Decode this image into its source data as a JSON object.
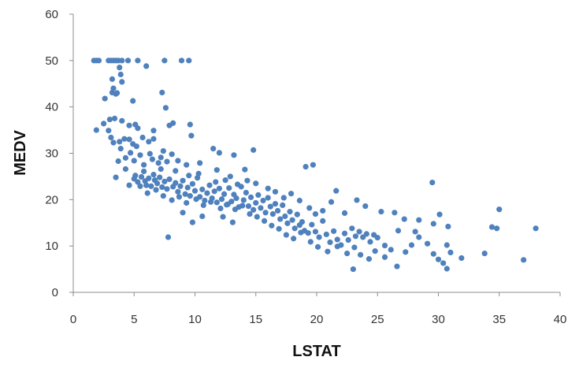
{
  "chart_data": {
    "type": "scatter",
    "title": "",
    "xlabel": "LSTAT",
    "ylabel": "MEDV",
    "xlim": [
      0,
      40
    ],
    "ylim": [
      0,
      60
    ],
    "x_ticks": [
      "0",
      "5",
      "10",
      "15",
      "20",
      "25",
      "30",
      "35",
      "40"
    ],
    "y_ticks": [
      "0",
      "10",
      "20",
      "30",
      "40",
      "50",
      "60"
    ],
    "grid": false,
    "legend": "none",
    "marker_color": "#4F81BD",
    "series": [
      {
        "points": [
          [
            1.7,
            50
          ],
          [
            1.9,
            50
          ],
          [
            2.1,
            50
          ],
          [
            2.9,
            50
          ],
          [
            3.1,
            50
          ],
          [
            3.3,
            50
          ],
          [
            3.5,
            50
          ],
          [
            3.7,
            50
          ],
          [
            4.0,
            50
          ],
          [
            4.5,
            50
          ],
          [
            5.3,
            50
          ],
          [
            7.5,
            50
          ],
          [
            8.9,
            50
          ],
          [
            9.5,
            50
          ],
          [
            6.0,
            48.8
          ],
          [
            3.8,
            48.5
          ],
          [
            3.9,
            47
          ],
          [
            3.2,
            46
          ],
          [
            4.0,
            45.4
          ],
          [
            3.3,
            44
          ],
          [
            3.2,
            43.1
          ],
          [
            3.6,
            43
          ],
          [
            3.5,
            42.8
          ],
          [
            7.3,
            43.1
          ],
          [
            2.6,
            41.8
          ],
          [
            4.9,
            41.3
          ],
          [
            3.4,
            37.5
          ],
          [
            3.0,
            37.3
          ],
          [
            4.0,
            37
          ],
          [
            7.6,
            39.8
          ],
          [
            5.1,
            36.2
          ],
          [
            4.6,
            36
          ],
          [
            5.3,
            35.4
          ],
          [
            9.6,
            36.2
          ],
          [
            7.9,
            36
          ],
          [
            8.2,
            36.5
          ],
          [
            6.6,
            34.9
          ],
          [
            1.9,
            35
          ],
          [
            2.9,
            34.9
          ],
          [
            3.8,
            32.5
          ],
          [
            3.3,
            32.3
          ],
          [
            4.2,
            33.1
          ],
          [
            4.6,
            33
          ],
          [
            4.9,
            32
          ],
          [
            5.7,
            33.4
          ],
          [
            6.2,
            32.5
          ],
          [
            6.6,
            33.1
          ],
          [
            5.2,
            31.5
          ],
          [
            4.7,
            30.1
          ],
          [
            3.9,
            31
          ],
          [
            5.5,
            29.6
          ],
          [
            6.3,
            29.9
          ],
          [
            7.2,
            29.1
          ],
          [
            7.4,
            30.5
          ],
          [
            8.1,
            29.8
          ],
          [
            9.7,
            33.8
          ],
          [
            11.5,
            31
          ],
          [
            12.0,
            30.1
          ],
          [
            13.2,
            29.6
          ],
          [
            14.8,
            30.7
          ],
          [
            5.0,
            28.4
          ],
          [
            5.8,
            27.5
          ],
          [
            6.5,
            28.7
          ],
          [
            7.0,
            27.9
          ],
          [
            7.7,
            28.2
          ],
          [
            8.6,
            28.4
          ],
          [
            9.3,
            27.5
          ],
          [
            10.4,
            27.9
          ],
          [
            11.8,
            26.4
          ],
          [
            12.9,
            25
          ],
          [
            14.1,
            26.5
          ],
          [
            3.5,
            24.8
          ],
          [
            4.3,
            26.6
          ],
          [
            5.1,
            25.2
          ],
          [
            5.3,
            23.8
          ],
          [
            5.6,
            24.9
          ],
          [
            5.9,
            24
          ],
          [
            6.0,
            23.1
          ],
          [
            6.2,
            24.6
          ],
          [
            6.4,
            22.9
          ],
          [
            6.7,
            24.2
          ],
          [
            6.9,
            23.5
          ],
          [
            7.1,
            24.8
          ],
          [
            7.3,
            22.7
          ],
          [
            7.5,
            23.9
          ],
          [
            7.7,
            22.3
          ],
          [
            7.9,
            24.4
          ],
          [
            8.2,
            22.8
          ],
          [
            8.4,
            23.6
          ],
          [
            8.6,
            21.7
          ],
          [
            8.8,
            22.9
          ],
          [
            9.0,
            24.1
          ],
          [
            9.2,
            21.2
          ],
          [
            9.4,
            22.6
          ],
          [
            9.6,
            20.8
          ],
          [
            9.8,
            23.4
          ],
          [
            10.0,
            21.9
          ],
          [
            10.2,
            24.7
          ],
          [
            10.4,
            20.6
          ],
          [
            10.6,
            22.2
          ],
          [
            10.8,
            19.8
          ],
          [
            11.0,
            21.4
          ],
          [
            11.2,
            23.1
          ],
          [
            11.4,
            20.3
          ],
          [
            11.6,
            21.8
          ],
          [
            11.8,
            19.4
          ],
          [
            12.0,
            22.4
          ],
          [
            12.2,
            20.1
          ],
          [
            12.4,
            21.2
          ],
          [
            12.6,
            18.9
          ],
          [
            12.8,
            22.5
          ],
          [
            13.0,
            19.6
          ],
          [
            13.2,
            21.1
          ],
          [
            13.4,
            20.3
          ],
          [
            13.6,
            18.4
          ],
          [
            13.8,
            22.8
          ],
          [
            14.0,
            19.9
          ],
          [
            14.2,
            21.5
          ],
          [
            14.4,
            18.6
          ],
          [
            14.6,
            20.5
          ],
          [
            14.8,
            17.8
          ],
          [
            15.0,
            19.3
          ],
          [
            15.2,
            21
          ],
          [
            15.4,
            18.2
          ],
          [
            15.6,
            19.8
          ],
          [
            15.8,
            17.2
          ],
          [
            16.0,
            20.4
          ],
          [
            16.2,
            18.5
          ],
          [
            16.4,
            16.9
          ],
          [
            16.6,
            19.1
          ],
          [
            16.8,
            17.6
          ],
          [
            17.0,
            15.8
          ],
          [
            17.2,
            18.8
          ],
          [
            17.4,
            16.4
          ],
          [
            17.6,
            14.9
          ],
          [
            17.8,
            17.4
          ],
          [
            18.0,
            15.6
          ],
          [
            18.2,
            13.8
          ],
          [
            18.4,
            16.8
          ],
          [
            18.6,
            14.5
          ],
          [
            18.8,
            15.2
          ],
          [
            19.0,
            13.3
          ],
          [
            19.3,
            12.8
          ],
          [
            19.6,
            14.6
          ],
          [
            19.9,
            13.1
          ],
          [
            20.2,
            11.9
          ],
          [
            20.5,
            15.4
          ],
          [
            20.8,
            12.5
          ],
          [
            21.1,
            10.8
          ],
          [
            21.4,
            13.2
          ],
          [
            21.7,
            11.4
          ],
          [
            22.0,
            10.2
          ],
          [
            22.3,
            12.7
          ],
          [
            22.6,
            11.3
          ],
          [
            22.9,
            13.8
          ],
          [
            23.2,
            12.1
          ],
          [
            23.5,
            13.1
          ],
          [
            23.8,
            11.9
          ],
          [
            24.1,
            12.6
          ],
          [
            24.4,
            10.9
          ],
          [
            24.7,
            12.4
          ],
          [
            25.0,
            11.8
          ],
          [
            15.0,
            23.5
          ],
          [
            16.0,
            22.4
          ],
          [
            16.6,
            21.7
          ],
          [
            17.3,
            20.4
          ],
          [
            17.9,
            21.3
          ],
          [
            18.6,
            19.8
          ],
          [
            19.4,
            18.2
          ],
          [
            19.9,
            16.9
          ],
          [
            20.5,
            17.6
          ],
          [
            21.2,
            19.5
          ],
          [
            21.6,
            21.9
          ],
          [
            22.3,
            17.1
          ],
          [
            23.3,
            19.9
          ],
          [
            24.0,
            18.6
          ],
          [
            25.3,
            17.4
          ],
          [
            26.4,
            17.2
          ],
          [
            27.2,
            15.8
          ],
          [
            28.4,
            15.6
          ],
          [
            29.6,
            14.8
          ],
          [
            30.1,
            16.8
          ],
          [
            30.8,
            14.2
          ],
          [
            5.5,
            22.9
          ],
          [
            6.1,
            21.4
          ],
          [
            6.8,
            22.1
          ],
          [
            7.4,
            20.8
          ],
          [
            8.1,
            19.9
          ],
          [
            8.7,
            20.6
          ],
          [
            9.3,
            19.3
          ],
          [
            10.1,
            20.1
          ],
          [
            10.7,
            18.8
          ],
          [
            11.3,
            19.5
          ],
          [
            12.1,
            18.1
          ],
          [
            12.7,
            19
          ],
          [
            13.3,
            17.9
          ],
          [
            13.9,
            18.7
          ],
          [
            14.5,
            16.9
          ],
          [
            15.1,
            16.3
          ],
          [
            15.7,
            15.4
          ],
          [
            16.3,
            14.4
          ],
          [
            16.9,
            13.7
          ],
          [
            17.5,
            12.4
          ],
          [
            18.1,
            11.6
          ],
          [
            18.7,
            12.9
          ],
          [
            19.5,
            10.9
          ],
          [
            20.1,
            9.8
          ],
          [
            20.9,
            8.8
          ],
          [
            21.7,
            9.9
          ],
          [
            22.5,
            8.4
          ],
          [
            23.1,
            9.7
          ],
          [
            23.6,
            8.1
          ],
          [
            24.3,
            7.2
          ],
          [
            24.8,
            8.9
          ],
          [
            25.6,
            7.6
          ],
          [
            26.1,
            9.2
          ],
          [
            26.6,
            5.6
          ],
          [
            27.3,
            8.7
          ],
          [
            27.8,
            10.2
          ],
          [
            28.4,
            11.9
          ],
          [
            29.1,
            10.5
          ],
          [
            29.6,
            8.3
          ],
          [
            30.0,
            7.1
          ],
          [
            30.4,
            6.3
          ],
          [
            30.7,
            5.1
          ],
          [
            31.0,
            8.6
          ],
          [
            31.9,
            7.4
          ],
          [
            33.8,
            8.4
          ],
          [
            34.4,
            14.1
          ],
          [
            34.8,
            13.8
          ],
          [
            35.0,
            17.9
          ],
          [
            37.0,
            7
          ],
          [
            38.0,
            13.8
          ],
          [
            29.5,
            23.7
          ],
          [
            19.1,
            27.1
          ],
          [
            19.7,
            27.5
          ],
          [
            23.0,
            5
          ],
          [
            30.7,
            10.2
          ],
          [
            26.7,
            13.3
          ],
          [
            25.6,
            10.1
          ],
          [
            28.1,
            13.1
          ],
          [
            12.3,
            16.3
          ],
          [
            13.1,
            15.1
          ],
          [
            9.0,
            17.2
          ],
          [
            9.8,
            15.1
          ],
          [
            7.8,
            11.9
          ],
          [
            10.6,
            16.4
          ],
          [
            11.7,
            23.8
          ],
          [
            12.5,
            24.2
          ],
          [
            13.5,
            23.3
          ],
          [
            14.3,
            24.1
          ],
          [
            9.5,
            25.2
          ],
          [
            10.3,
            25.6
          ],
          [
            4.6,
            23.1
          ],
          [
            5.0,
            24.5
          ],
          [
            5.8,
            26.1
          ],
          [
            6.6,
            25.4
          ],
          [
            7.2,
            26.6
          ],
          [
            8.4,
            26.2
          ],
          [
            3.1,
            33.4
          ],
          [
            2.5,
            36.4
          ],
          [
            4.3,
            29
          ],
          [
            3.7,
            28.3
          ]
        ]
      }
    ]
  }
}
